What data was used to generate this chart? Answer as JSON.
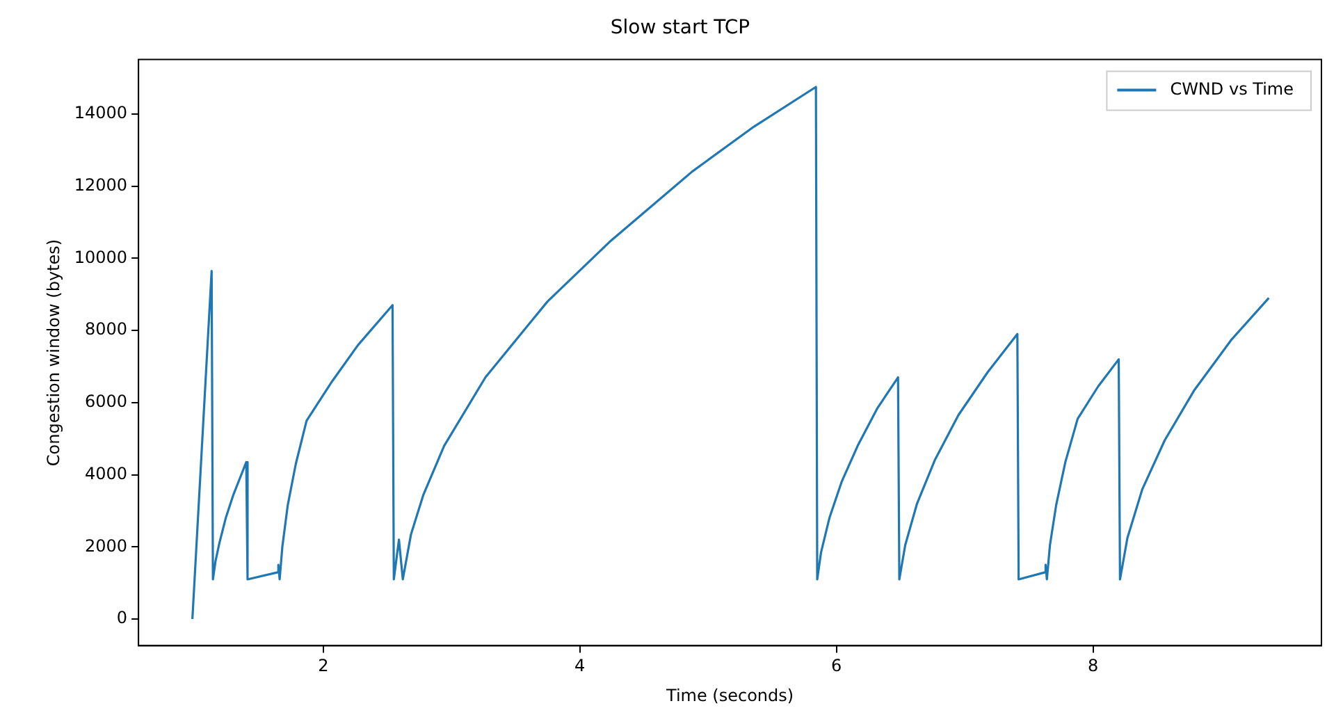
{
  "chart_data": {
    "type": "line",
    "title": "Slow start TCP",
    "xlabel": "Time (seconds)",
    "ylabel": "Congestion window (bytes)",
    "xlim": [
      0.56,
      9.78
    ],
    "xticks": [
      2,
      4,
      6,
      8
    ],
    "ylim": [
      -740,
      15510
    ],
    "yticks": [
      0,
      2000,
      4000,
      6000,
      8000,
      10000,
      12000,
      14000
    ],
    "grid": false,
    "legend": "top right",
    "marker": "none",
    "line_style": "solid",
    "series": [
      {
        "name": "CWND vs Time",
        "color": "#1f77b4",
        "x": [
          0.98,
          1.13,
          1.14,
          1.16,
          1.19,
          1.24,
          1.3,
          1.35,
          1.4,
          1.41,
          1.65,
          1.65,
          1.66,
          1.681,
          1.723,
          1.786,
          1.87,
          2.071,
          2.272,
          2.54,
          2.55,
          2.59,
          2.62,
          2.684,
          2.781,
          2.942,
          3.264,
          3.747,
          4.23,
          4.874,
          5.357,
          5.84,
          5.85,
          5.88,
          5.945,
          6.04,
          6.165,
          6.32,
          6.48,
          6.49,
          6.536,
          6.628,
          6.766,
          6.95,
          7.18,
          7.41,
          7.42,
          7.63,
          7.63,
          7.64,
          7.664,
          7.712,
          7.784,
          7.88,
          8.04,
          8.2,
          8.21,
          8.268,
          8.384,
          8.558,
          8.79,
          9.08,
          9.37
        ],
        "values": [
          0,
          9650,
          1100,
          1600,
          2100,
          2800,
          3450,
          3900,
          4350,
          1100,
          1300,
          1500,
          1100,
          2000,
          3150,
          4300,
          5500,
          6600,
          7600,
          8700,
          1100,
          2200,
          1100,
          2350,
          3450,
          4800,
          6700,
          8800,
          10450,
          12400,
          13650,
          14750,
          1100,
          1850,
          2800,
          3800,
          4800,
          5850,
          6700,
          1100,
          2050,
          3200,
          4400,
          5650,
          6850,
          7900,
          1100,
          1300,
          1500,
          1100,
          2050,
          3150,
          4350,
          5550,
          6450,
          7200,
          1100,
          2250,
          3600,
          4950,
          6350,
          7750,
          8900
        ]
      }
    ]
  }
}
